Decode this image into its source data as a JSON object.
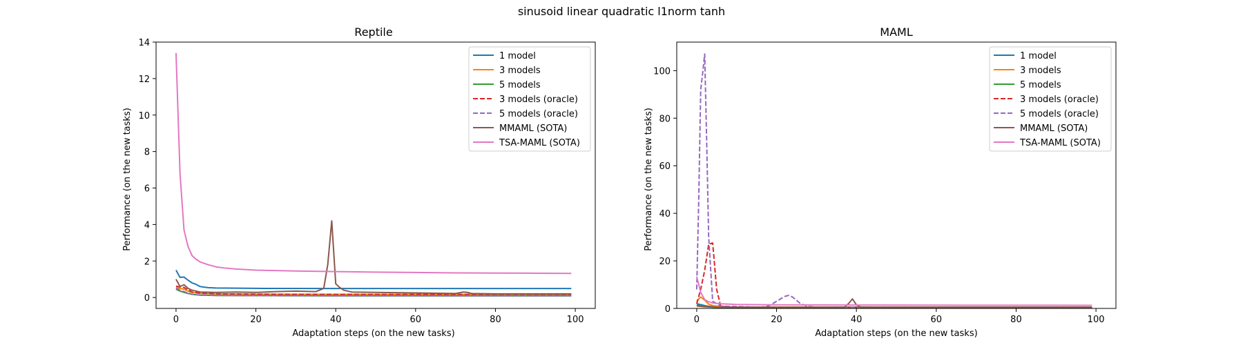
{
  "figure_title": "sinusoid linear quadratic l1norm tanh",
  "chart_data": [
    {
      "type": "line",
      "title": "Reptile",
      "xlabel": "Adaptation steps (on the new tasks)",
      "ylabel": "Performance (on the new tasks)",
      "xlim": [
        -5,
        105
      ],
      "ylim": [
        -0.6,
        14
      ],
      "xticks": [
        0,
        20,
        40,
        60,
        80,
        100
      ],
      "yticks": [
        0,
        2,
        4,
        6,
        8,
        10,
        12,
        14
      ],
      "legend_position": "top-right",
      "series": [
        {
          "name": "1 model",
          "color": "#1f77b4",
          "dash": "solid",
          "points": [
            [
              0,
              1.5
            ],
            [
              1,
              1.1
            ],
            [
              2,
              1.12
            ],
            [
              3,
              0.95
            ],
            [
              4,
              0.8
            ],
            [
              5,
              0.72
            ],
            [
              6,
              0.6
            ],
            [
              8,
              0.54
            ],
            [
              10,
              0.52
            ],
            [
              20,
              0.5
            ],
            [
              40,
              0.49
            ],
            [
              60,
              0.49
            ],
            [
              80,
              0.49
            ],
            [
              99,
              0.49
            ]
          ]
        },
        {
          "name": "3 models",
          "color": "#ff7f0e",
          "dash": "solid",
          "points": [
            [
              0,
              0.55
            ],
            [
              1,
              0.5
            ],
            [
              2,
              0.45
            ],
            [
              3,
              0.35
            ],
            [
              4,
              0.28
            ],
            [
              6,
              0.22
            ],
            [
              10,
              0.2
            ],
            [
              20,
              0.18
            ],
            [
              40,
              0.17
            ],
            [
              60,
              0.17
            ],
            [
              80,
              0.17
            ],
            [
              99,
              0.17
            ]
          ]
        },
        {
          "name": "5 models",
          "color": "#2ca02c",
          "dash": "solid",
          "points": [
            [
              0,
              0.45
            ],
            [
              1,
              0.35
            ],
            [
              2,
              0.28
            ],
            [
              3,
              0.22
            ],
            [
              4,
              0.17
            ],
            [
              6,
              0.13
            ],
            [
              10,
              0.11
            ],
            [
              20,
              0.1
            ],
            [
              40,
              0.09
            ],
            [
              60,
              0.09
            ],
            [
              80,
              0.09
            ],
            [
              99,
              0.09
            ]
          ]
        },
        {
          "name": "3 models (oracle)",
          "color": "#d62728",
          "dash": "dashed",
          "points": [
            [
              0,
              0.62
            ],
            [
              1,
              0.58
            ],
            [
              2,
              0.55
            ],
            [
              3,
              0.42
            ],
            [
              4,
              0.3
            ],
            [
              6,
              0.24
            ],
            [
              10,
              0.2
            ],
            [
              20,
              0.18
            ],
            [
              40,
              0.17
            ],
            [
              60,
              0.17
            ],
            [
              80,
              0.17
            ],
            [
              99,
              0.17
            ]
          ]
        },
        {
          "name": "5 models (oracle)",
          "color": "#9467bd",
          "dash": "dashed",
          "points": [
            [
              0,
              0.5
            ],
            [
              1,
              0.4
            ],
            [
              2,
              0.32
            ],
            [
              3,
              0.25
            ],
            [
              4,
              0.18
            ],
            [
              6,
              0.13
            ],
            [
              10,
              0.11
            ],
            [
              20,
              0.1
            ],
            [
              40,
              0.09
            ],
            [
              60,
              0.09
            ],
            [
              80,
              0.09
            ],
            [
              99,
              0.09
            ]
          ]
        },
        {
          "name": "MMAML (SOTA)",
          "color": "#8c564b",
          "dash": "solid",
          "points": [
            [
              0,
              1.0
            ],
            [
              1,
              0.6
            ],
            [
              2,
              0.7
            ],
            [
              3,
              0.5
            ],
            [
              4,
              0.4
            ],
            [
              5,
              0.35
            ],
            [
              6,
              0.3
            ],
            [
              10,
              0.28
            ],
            [
              15,
              0.3
            ],
            [
              20,
              0.28
            ],
            [
              25,
              0.32
            ],
            [
              30,
              0.35
            ],
            [
              35,
              0.32
            ],
            [
              37,
              0.5
            ],
            [
              38,
              1.8
            ],
            [
              39,
              4.2
            ],
            [
              40,
              0.75
            ],
            [
              41,
              0.55
            ],
            [
              42,
              0.4
            ],
            [
              44,
              0.3
            ],
            [
              50,
              0.28
            ],
            [
              60,
              0.25
            ],
            [
              70,
              0.22
            ],
            [
              72,
              0.3
            ],
            [
              73,
              0.28
            ],
            [
              74,
              0.22
            ],
            [
              80,
              0.2
            ],
            [
              90,
              0.2
            ],
            [
              99,
              0.2
            ]
          ]
        },
        {
          "name": "TSA-MAML (SOTA)",
          "color": "#e377c2",
          "dash": "solid",
          "points": [
            [
              0,
              13.4
            ],
            [
              1,
              6.8
            ],
            [
              2,
              3.7
            ],
            [
              3,
              2.8
            ],
            [
              4,
              2.3
            ],
            [
              5,
              2.1
            ],
            [
              6,
              1.95
            ],
            [
              8,
              1.8
            ],
            [
              10,
              1.68
            ],
            [
              12,
              1.62
            ],
            [
              15,
              1.56
            ],
            [
              20,
              1.5
            ],
            [
              30,
              1.45
            ],
            [
              40,
              1.42
            ],
            [
              50,
              1.39
            ],
            [
              60,
              1.37
            ],
            [
              70,
              1.35
            ],
            [
              80,
              1.34
            ],
            [
              90,
              1.33
            ],
            [
              99,
              1.32
            ]
          ]
        }
      ]
    },
    {
      "type": "line",
      "title": "MAML",
      "xlabel": "Adaptation steps (on the new tasks)",
      "ylabel": "Performance (on the new tasks)",
      "xlim": [
        -5,
        105
      ],
      "ylim": [
        0,
        112
      ],
      "xticks": [
        0,
        20,
        40,
        60,
        80,
        100
      ],
      "yticks": [
        0,
        20,
        40,
        60,
        80,
        100
      ],
      "legend_position": "top-right",
      "series": [
        {
          "name": "1 model",
          "color": "#1f77b4",
          "dash": "solid",
          "points": [
            [
              0,
              2.0
            ],
            [
              1,
              1.6
            ],
            [
              2,
              1.2
            ],
            [
              3,
              0.9
            ],
            [
              5,
              0.6
            ],
            [
              10,
              0.5
            ],
            [
              30,
              0.5
            ],
            [
              60,
              0.5
            ],
            [
              99,
              0.5
            ]
          ]
        },
        {
          "name": "3 models",
          "color": "#ff7f0e",
          "dash": "solid",
          "points": [
            [
              0,
              3.0
            ],
            [
              1,
              4.8
            ],
            [
              2,
              3.5
            ],
            [
              3,
              1.8
            ],
            [
              4,
              1.2
            ],
            [
              6,
              0.8
            ],
            [
              10,
              0.5
            ],
            [
              30,
              0.5
            ],
            [
              60,
              0.5
            ],
            [
              99,
              0.5
            ]
          ]
        },
        {
          "name": "5 models",
          "color": "#2ca02c",
          "dash": "solid",
          "points": [
            [
              0,
              1.5
            ],
            [
              1,
              1.0
            ],
            [
              2,
              0.8
            ],
            [
              4,
              0.5
            ],
            [
              10,
              0.4
            ],
            [
              30,
              0.4
            ],
            [
              60,
              0.4
            ],
            [
              99,
              0.4
            ]
          ]
        },
        {
          "name": "3 models (oracle)",
          "color": "#d62728",
          "dash": "dashed",
          "points": [
            [
              0,
              2.0
            ],
            [
              1,
              8.0
            ],
            [
              2,
              16.0
            ],
            [
              3,
              27.0
            ],
            [
              4,
              27.5
            ],
            [
              5,
              8.0
            ],
            [
              6,
              1.0
            ],
            [
              8,
              0.5
            ],
            [
              30,
              0.5
            ],
            [
              60,
              0.5
            ],
            [
              99,
              0.5
            ]
          ]
        },
        {
          "name": "5 models (oracle)",
          "color": "#9467bd",
          "dash": "dashed",
          "points": [
            [
              0,
              8.0
            ],
            [
              0.5,
              45.0
            ],
            [
              1,
              92.0
            ],
            [
              1.5,
              99.0
            ],
            [
              2,
              107.0
            ],
            [
              2.5,
              70.0
            ],
            [
              3,
              30.0
            ],
            [
              4,
              3.0
            ],
            [
              6,
              1.0
            ],
            [
              10,
              0.8
            ],
            [
              16,
              0.5
            ],
            [
              18,
              1.0
            ],
            [
              20,
              3.0
            ],
            [
              22,
              5.0
            ],
            [
              23,
              5.5
            ],
            [
              24,
              4.8
            ],
            [
              26,
              2.0
            ],
            [
              28,
              0.8
            ],
            [
              30,
              0.5
            ],
            [
              40,
              0.5
            ],
            [
              60,
              0.5
            ],
            [
              80,
              0.5
            ],
            [
              99,
              0.5
            ]
          ]
        },
        {
          "name": "MMAML (SOTA)",
          "color": "#8c564b",
          "dash": "solid",
          "points": [
            [
              0,
              1.0
            ],
            [
              2,
              0.7
            ],
            [
              5,
              0.5
            ],
            [
              10,
              0.5
            ],
            [
              30,
              0.5
            ],
            [
              37,
              0.5
            ],
            [
              38,
              2.0
            ],
            [
              39,
              4.0
            ],
            [
              40,
              1.5
            ],
            [
              41,
              0.6
            ],
            [
              45,
              0.5
            ],
            [
              60,
              0.5
            ],
            [
              99,
              0.5
            ]
          ]
        },
        {
          "name": "TSA-MAML (SOTA)",
          "color": "#e377c2",
          "dash": "solid",
          "points": [
            [
              0,
              13.4
            ],
            [
              1,
              6.8
            ],
            [
              2,
              3.7
            ],
            [
              3,
              2.8
            ],
            [
              4,
              2.3
            ],
            [
              6,
              1.95
            ],
            [
              10,
              1.68
            ],
            [
              20,
              1.5
            ],
            [
              40,
              1.42
            ],
            [
              60,
              1.37
            ],
            [
              80,
              1.34
            ],
            [
              99,
              1.32
            ]
          ]
        }
      ]
    }
  ]
}
